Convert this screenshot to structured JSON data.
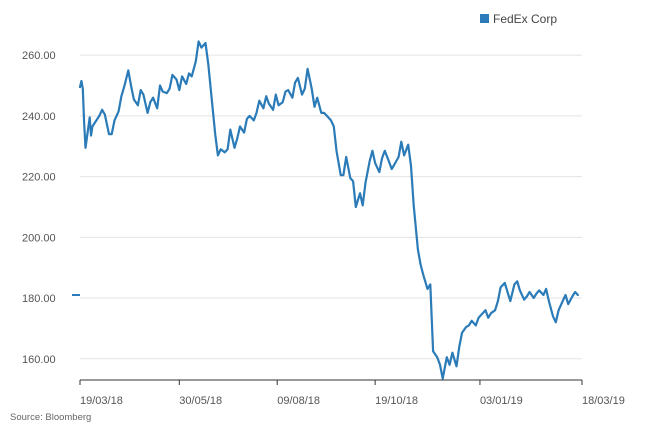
{
  "source_note": "Source: Bloomberg",
  "colors": {
    "series": "#2a7bb8",
    "grid": "#e3e3e3",
    "axis": "#333333",
    "text": "#555555"
  },
  "chart_data": {
    "type": "line",
    "legend_position": "top-right",
    "grid": true,
    "ylim": [
      153,
      265
    ],
    "y_ticks": [
      {
        "value": 160,
        "label": "160.00"
      },
      {
        "value": 180,
        "label": "180.00"
      },
      {
        "value": 200,
        "label": "200.00"
      },
      {
        "value": 220,
        "label": "220.00"
      },
      {
        "value": 240,
        "label": "240.00"
      },
      {
        "value": 260,
        "label": "260.00"
      }
    ],
    "x_ticks": [
      {
        "date": "2018-03-19",
        "label": "19/03/18"
      },
      {
        "date": "2018-05-30",
        "label": "30/05/18"
      },
      {
        "date": "2018-08-09",
        "label": "09/08/18"
      },
      {
        "date": "2018-10-19",
        "label": "19/10/18"
      },
      {
        "date": "2019-01-03",
        "label": "03/01/19"
      },
      {
        "date": "2019-03-18",
        "label": "18/03/19"
      }
    ],
    "last_value": 181,
    "series": [
      {
        "name": "FedEx Corp",
        "points": [
          [
            "2018-03-19",
            249.5
          ],
          [
            "2018-03-20",
            251.5
          ],
          [
            "2018-03-21",
            249.0
          ],
          [
            "2018-03-22",
            238.0
          ],
          [
            "2018-03-23",
            229.5
          ],
          [
            "2018-03-26",
            239.5
          ],
          [
            "2018-03-27",
            233.5
          ],
          [
            "2018-03-28",
            236.5
          ],
          [
            "2018-04-02",
            240.0
          ],
          [
            "2018-04-04",
            242.0
          ],
          [
            "2018-04-06",
            240.5
          ],
          [
            "2018-04-09",
            234.0
          ],
          [
            "2018-04-11",
            234.0
          ],
          [
            "2018-04-13",
            238.5
          ],
          [
            "2018-04-16",
            241.5
          ],
          [
            "2018-04-18",
            246.5
          ],
          [
            "2018-04-20",
            249.5
          ],
          [
            "2018-04-23",
            255.0
          ],
          [
            "2018-04-25",
            250.0
          ],
          [
            "2018-04-27",
            245.5
          ],
          [
            "2018-04-30",
            243.5
          ],
          [
            "2018-05-02",
            248.5
          ],
          [
            "2018-05-04",
            247.0
          ],
          [
            "2018-05-07",
            241.0
          ],
          [
            "2018-05-09",
            244.5
          ],
          [
            "2018-05-11",
            246.0
          ],
          [
            "2018-05-14",
            242.5
          ],
          [
            "2018-05-16",
            250.0
          ],
          [
            "2018-05-18",
            248.0
          ],
          [
            "2018-05-21",
            247.5
          ],
          [
            "2018-05-23",
            249.0
          ],
          [
            "2018-05-25",
            253.5
          ],
          [
            "2018-05-28",
            252.0
          ],
          [
            "2018-05-30",
            248.5
          ],
          [
            "2018-06-01",
            253.0
          ],
          [
            "2018-06-04",
            250.5
          ],
          [
            "2018-06-06",
            254.0
          ],
          [
            "2018-06-08",
            253.0
          ],
          [
            "2018-06-11",
            258.0
          ],
          [
            "2018-06-13",
            264.5
          ],
          [
            "2018-06-15",
            262.5
          ],
          [
            "2018-06-18",
            264.0
          ],
          [
            "2018-06-20",
            257.0
          ],
          [
            "2018-06-22",
            248.0
          ],
          [
            "2018-06-25",
            234.0
          ],
          [
            "2018-06-27",
            227.0
          ],
          [
            "2018-06-29",
            229.0
          ],
          [
            "2018-07-02",
            228.0
          ],
          [
            "2018-07-04",
            229.0
          ],
          [
            "2018-07-06",
            235.5
          ],
          [
            "2018-07-09",
            229.5
          ],
          [
            "2018-07-11",
            232.5
          ],
          [
            "2018-07-13",
            236.5
          ],
          [
            "2018-07-16",
            234.5
          ],
          [
            "2018-07-18",
            239.0
          ],
          [
            "2018-07-20",
            240.0
          ],
          [
            "2018-07-23",
            238.5
          ],
          [
            "2018-07-25",
            241.0
          ],
          [
            "2018-07-27",
            245.0
          ],
          [
            "2018-07-30",
            242.5
          ],
          [
            "2018-08-01",
            246.5
          ],
          [
            "2018-08-03",
            244.0
          ],
          [
            "2018-08-06",
            242.0
          ],
          [
            "2018-08-08",
            247.0
          ],
          [
            "2018-08-10",
            243.5
          ],
          [
            "2018-08-13",
            244.5
          ],
          [
            "2018-08-15",
            248.0
          ],
          [
            "2018-08-17",
            248.5
          ],
          [
            "2018-08-20",
            246.0
          ],
          [
            "2018-08-22",
            251.0
          ],
          [
            "2018-08-24",
            252.5
          ],
          [
            "2018-08-27",
            247.0
          ],
          [
            "2018-08-29",
            249.0
          ],
          [
            "2018-08-31",
            255.5
          ],
          [
            "2018-09-03",
            249.0
          ],
          [
            "2018-09-05",
            243.0
          ],
          [
            "2018-09-07",
            246.0
          ],
          [
            "2018-09-10",
            241.0
          ],
          [
            "2018-09-12",
            241.0
          ],
          [
            "2018-09-14",
            240.0
          ],
          [
            "2018-09-17",
            238.5
          ],
          [
            "2018-09-19",
            236.5
          ],
          [
            "2018-09-21",
            228.5
          ],
          [
            "2018-09-24",
            220.5
          ],
          [
            "2018-09-26",
            220.5
          ],
          [
            "2018-09-28",
            226.5
          ],
          [
            "2018-10-01",
            219.5
          ],
          [
            "2018-10-03",
            218.5
          ],
          [
            "2018-10-05",
            210.0
          ],
          [
            "2018-10-08",
            214.5
          ],
          [
            "2018-10-10",
            210.5
          ],
          [
            "2018-10-12",
            218.0
          ],
          [
            "2018-10-15",
            225.0
          ],
          [
            "2018-10-17",
            228.5
          ],
          [
            "2018-10-19",
            224.5
          ],
          [
            "2018-10-22",
            221.5
          ],
          [
            "2018-10-24",
            226.0
          ],
          [
            "2018-10-26",
            228.5
          ],
          [
            "2018-10-29",
            225.0
          ],
          [
            "2018-10-31",
            222.5
          ],
          [
            "2018-11-02",
            224.0
          ],
          [
            "2018-11-05",
            226.5
          ],
          [
            "2018-11-07",
            231.5
          ],
          [
            "2018-11-09",
            227.0
          ],
          [
            "2018-11-12",
            230.5
          ],
          [
            "2018-11-14",
            223.5
          ],
          [
            "2018-11-16",
            210.5
          ],
          [
            "2018-11-19",
            196.0
          ],
          [
            "2018-11-21",
            191.0
          ],
          [
            "2018-11-23",
            187.5
          ],
          [
            "2018-11-26",
            183.0
          ],
          [
            "2018-11-28",
            184.5
          ],
          [
            "2018-11-30",
            162.5
          ],
          [
            "2018-12-03",
            160.5
          ],
          [
            "2018-12-05",
            158.0
          ],
          [
            "2018-12-07",
            153.5
          ],
          [
            "2018-12-10",
            160.5
          ],
          [
            "2018-12-12",
            158.0
          ],
          [
            "2018-12-14",
            162.0
          ],
          [
            "2018-12-17",
            157.5
          ],
          [
            "2018-12-19",
            164.0
          ],
          [
            "2018-12-21",
            168.5
          ],
          [
            "2018-12-24",
            170.5
          ],
          [
            "2018-12-26",
            171.0
          ],
          [
            "2018-12-28",
            172.5
          ],
          [
            "2018-12-31",
            171.0
          ],
          [
            "2019-01-02",
            173.5
          ],
          [
            "2019-01-04",
            174.5
          ],
          [
            "2019-01-07",
            176.0
          ],
          [
            "2019-01-09",
            173.5
          ],
          [
            "2019-01-11",
            175.0
          ],
          [
            "2019-01-14",
            176.0
          ],
          [
            "2019-01-16",
            179.0
          ],
          [
            "2019-01-18",
            183.5
          ],
          [
            "2019-01-21",
            185.0
          ],
          [
            "2019-01-23",
            182.0
          ],
          [
            "2019-01-25",
            179.0
          ],
          [
            "2019-01-28",
            184.5
          ],
          [
            "2019-01-30",
            185.5
          ],
          [
            "2019-02-01",
            182.5
          ],
          [
            "2019-02-04",
            179.5
          ],
          [
            "2019-02-06",
            180.5
          ],
          [
            "2019-02-08",
            182.0
          ],
          [
            "2019-02-11",
            180.0
          ],
          [
            "2019-02-13",
            181.5
          ],
          [
            "2019-02-15",
            182.5
          ],
          [
            "2019-02-18",
            181.0
          ],
          [
            "2019-02-20",
            183.0
          ],
          [
            "2019-02-22",
            179.0
          ],
          [
            "2019-02-25",
            174.0
          ],
          [
            "2019-02-27",
            172.0
          ],
          [
            "2019-03-01",
            176.0
          ],
          [
            "2019-03-04",
            179.0
          ],
          [
            "2019-03-06",
            181.0
          ],
          [
            "2019-03-08",
            178.0
          ],
          [
            "2019-03-11",
            180.5
          ],
          [
            "2019-03-13",
            182.0
          ],
          [
            "2019-03-15",
            181.0
          ]
        ]
      }
    ]
  }
}
